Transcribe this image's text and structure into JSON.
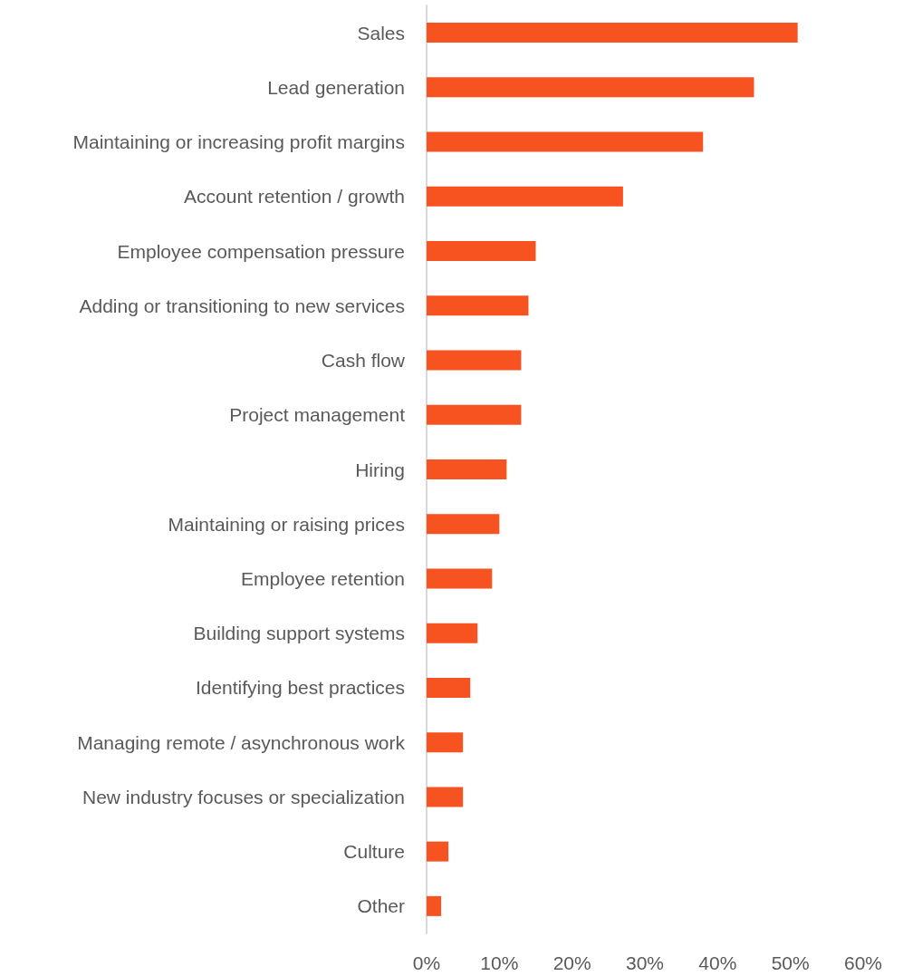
{
  "chart_data": {
    "type": "bar",
    "orientation": "horizontal",
    "categories": [
      "Sales",
      "Lead generation",
      "Maintaining or increasing profit margins",
      "Account retention / growth",
      "Employee compensation pressure",
      "Adding or transitioning to new services",
      "Cash flow",
      "Project management",
      "Hiring",
      "Maintaining or raising prices",
      "Employee retention",
      "Building support systems",
      "Identifying best practices",
      "Managing remote / asynchronous work",
      "New industry focuses or specialization",
      "Culture",
      "Other"
    ],
    "values": [
      51,
      45,
      38,
      27,
      15,
      14,
      13,
      13,
      11,
      10,
      9,
      7,
      6,
      5,
      5,
      3,
      2
    ],
    "color": "#f75321",
    "xlim": [
      0,
      60
    ],
    "xticks": [
      {
        "value": 0,
        "label": "0%"
      },
      {
        "value": 10,
        "label": "10%"
      },
      {
        "value": 20,
        "label": "20%"
      },
      {
        "value": 30,
        "label": "30%"
      },
      {
        "value": 40,
        "label": "40%"
      },
      {
        "value": 50,
        "label": "50%"
      },
      {
        "value": 60,
        "label": "60%"
      }
    ],
    "grid": false
  }
}
